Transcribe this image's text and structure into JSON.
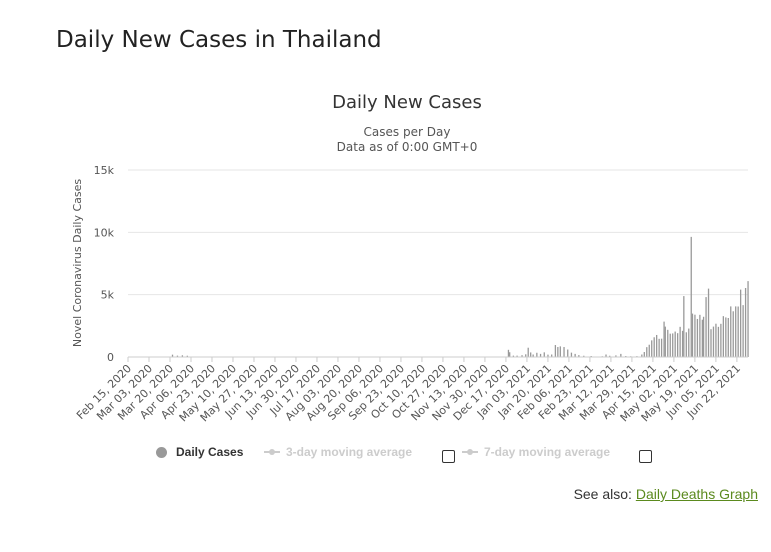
{
  "page": {
    "heading": "Daily New Cases in Thailand",
    "see_also_label": "See also:",
    "see_also_link": "Daily Deaths Graph",
    "link_color": "#5b8a1e"
  },
  "legend": {
    "daily": "Daily Cases",
    "avg3": "3-day moving average",
    "avg7": "7-day moving average"
  },
  "chart_data": {
    "type": "bar",
    "title": "Daily New Cases",
    "subtitle_line1": "Cases per Day",
    "subtitle_line2": "Data as of 0:00 GMT+0",
    "ylabel": "Novel Coronavirus Daily Cases",
    "xlabel": "",
    "ylim": [
      0,
      15000
    ],
    "yticks": [
      "0",
      "5k",
      "10k",
      "15k"
    ],
    "ytick_values": [
      0,
      5000,
      10000,
      15000
    ],
    "grid": true,
    "bar_color": "#999999",
    "x_tick_labels": [
      "Feb 15, 2020",
      "Mar 03, 2020",
      "Mar 20, 2020",
      "Apr 06, 2020",
      "Apr 23, 2020",
      "May 10, 2020",
      "May 27, 2020",
      "Jun 13, 2020",
      "Jun 30, 2020",
      "Jul 17, 2020",
      "Aug 03, 2020",
      "Aug 20, 2020",
      "Sep 06, 2020",
      "Sep 23, 2020",
      "Oct 10, 2020",
      "Oct 27, 2020",
      "Nov 13, 2020",
      "Nov 30, 2020",
      "Dec 17, 2020",
      "Jan 03, 2021",
      "Jan 20, 2021",
      "Feb 06, 2021",
      "Feb 23, 2021",
      "Mar 12, 2021",
      "Mar 29, 2021",
      "Apr 15, 2021",
      "May 02, 2021",
      "May 19, 2021",
      "Jun 05, 2021",
      "Jun 22, 2021"
    ],
    "series": [
      {
        "name": "Daily Cases",
        "points": [
          [
            "Mar 22, 2020",
            188
          ],
          [
            "Mar 26, 2020",
            111
          ],
          [
            "Mar 30, 2020",
            136
          ],
          [
            "Apr 03, 2020",
            103
          ],
          [
            "Dec 19, 2020",
            576
          ],
          [
            "Dec 20, 2020",
            382
          ],
          [
            "Dec 23, 2020",
            110
          ],
          [
            "Dec 26, 2020",
            110
          ],
          [
            "Dec 30, 2020",
            144
          ],
          [
            "Jan 02, 2021",
            216
          ],
          [
            "Jan 04, 2021",
            745
          ],
          [
            "Jan 06, 2021",
            365
          ],
          [
            "Jan 08, 2021",
            200
          ],
          [
            "Jan 11, 2021",
            340
          ],
          [
            "Jan 14, 2021",
            250
          ],
          [
            "Jan 17, 2021",
            374
          ],
          [
            "Jan 20, 2021",
            190
          ],
          [
            "Jan 23, 2021",
            200
          ],
          [
            "Jan 26, 2021",
            959
          ],
          [
            "Jan 28, 2021",
            800
          ],
          [
            "Jan 30, 2021",
            853
          ],
          [
            "Feb 02, 2021",
            800
          ],
          [
            "Feb 05, 2021",
            600
          ],
          [
            "Feb 08, 2021",
            350
          ],
          [
            "Feb 11, 2021",
            250
          ],
          [
            "Feb 14, 2021",
            150
          ],
          [
            "Feb 18, 2021",
            100
          ],
          [
            "Feb 24, 2021",
            80
          ],
          [
            "Mar 05, 2021",
            60
          ],
          [
            "Mar 08, 2021",
            200
          ],
          [
            "Mar 11, 2021",
            100
          ],
          [
            "Mar 16, 2021",
            130
          ],
          [
            "Mar 20, 2021",
            250
          ],
          [
            "Mar 24, 2021",
            80
          ],
          [
            "Mar 28, 2021",
            60
          ],
          [
            "Apr 02, 2021",
            70
          ],
          [
            "Apr 06, 2021",
            200
          ],
          [
            "Apr 08, 2021",
            400
          ],
          [
            "Apr 10, 2021",
            790
          ],
          [
            "Apr 12, 2021",
            985
          ],
          [
            "Apr 14, 2021",
            1335
          ],
          [
            "Apr 16, 2021",
            1582
          ],
          [
            "Apr 18, 2021",
            1767
          ],
          [
            "Apr 20, 2021",
            1458
          ],
          [
            "Apr 22, 2021",
            1470
          ],
          [
            "Apr 24, 2021",
            2839
          ],
          [
            "Apr 25, 2021",
            2438
          ],
          [
            "Apr 27, 2021",
            2179
          ],
          [
            "Apr 29, 2021",
            1871
          ],
          [
            "May 01, 2021",
            1891
          ],
          [
            "May 03, 2021",
            2041
          ],
          [
            "May 05, 2021",
            1911
          ],
          [
            "May 07, 2021",
            2419
          ],
          [
            "May 09, 2021",
            2101
          ],
          [
            "May 10, 2021",
            4887
          ],
          [
            "May 12, 2021",
            1983
          ],
          [
            "May 14, 2021",
            2281
          ],
          [
            "May 16, 2021",
            9635
          ],
          [
            "May 17, 2021",
            3481
          ],
          [
            "May 19, 2021",
            3394
          ],
          [
            "May 21, 2021",
            3052
          ],
          [
            "May 23, 2021",
            3382
          ],
          [
            "May 25, 2021",
            2993
          ],
          [
            "May 26, 2021",
            3226
          ],
          [
            "May 28, 2021",
            4807
          ],
          [
            "May 30, 2021",
            5485
          ],
          [
            "Jun 01, 2021",
            2230
          ],
          [
            "Jun 03, 2021",
            2440
          ],
          [
            "Jun 05, 2021",
            2671
          ],
          [
            "Jun 07, 2021",
            2419
          ],
          [
            "Jun 09, 2021",
            2662
          ],
          [
            "Jun 11, 2021",
            3277
          ],
          [
            "Jun 13, 2021",
            3175
          ],
          [
            "Jun 15, 2021",
            3129
          ],
          [
            "Jun 17, 2021",
            4059
          ],
          [
            "Jun 19, 2021",
            3667
          ],
          [
            "Jun 21, 2021",
            4059
          ],
          [
            "Jun 23, 2021",
            4049
          ],
          [
            "Jun 25, 2021",
            5406
          ],
          [
            "Jun 27, 2021",
            4161
          ],
          [
            "Jun 29, 2021",
            5533
          ],
          [
            "Jul 01, 2021",
            6087
          ]
        ]
      }
    ],
    "x_range": [
      "Feb 15, 2020",
      "Jul 01, 2021"
    ]
  }
}
